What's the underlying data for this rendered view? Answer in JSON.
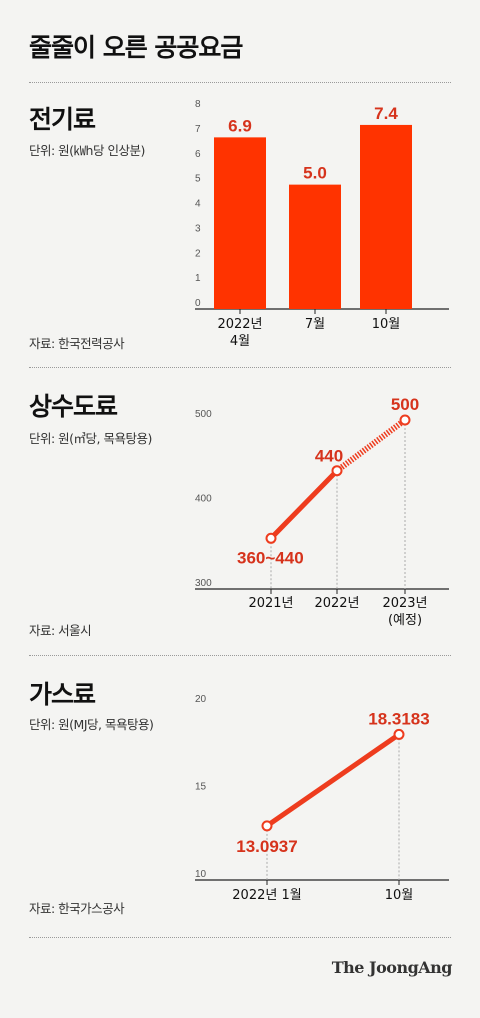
{
  "title": "줄줄이 오른 공공요금",
  "colors": {
    "accent": "#ff3300",
    "line": "#ee3c1e",
    "label": "#d6331c"
  },
  "sections": [
    {
      "title": "전기료",
      "unit": "단위: 원(㎾h당 인상분)",
      "source": "자료: 한국전력공사"
    },
    {
      "title": "상수도료",
      "unit": "단위: 원(㎥당, 목욕탕용)",
      "source": "자료: 서울시"
    },
    {
      "title": "가스료",
      "unit": "단위: 원(MJ당, 목욕탕용)",
      "source": "자료: 한국가스공사"
    }
  ],
  "chart_data": [
    {
      "type": "bar",
      "categories": [
        [
          "2022년",
          "4월"
        ],
        [
          "7월"
        ],
        [
          "10월"
        ]
      ],
      "values": [
        6.9,
        5.0,
        7.4
      ],
      "value_labels": [
        "6.9",
        "5.0",
        "7.4"
      ],
      "ylim": [
        0,
        8
      ],
      "yticks": [
        0,
        1,
        2,
        3,
        4,
        5,
        6,
        7,
        8
      ]
    },
    {
      "type": "line",
      "categories": [
        [
          "2021년"
        ],
        [
          "2022년"
        ],
        [
          "2023년",
          "(예정)"
        ]
      ],
      "values": [
        360,
        440,
        500
      ],
      "value_labels": [
        "360~440",
        "440",
        "500"
      ],
      "projected_from_index": 1,
      "ylim": [
        300,
        500
      ],
      "yticks": [
        300,
        400,
        500
      ]
    },
    {
      "type": "line",
      "categories": [
        [
          "2022년 1월"
        ],
        [
          "10월"
        ]
      ],
      "values": [
        13.0937,
        18.3183
      ],
      "value_labels": [
        "13.0937",
        "18.3183"
      ],
      "ylim": [
        10,
        20
      ],
      "yticks": [
        10,
        15,
        20
      ]
    }
  ],
  "logo": "The JoongAng"
}
